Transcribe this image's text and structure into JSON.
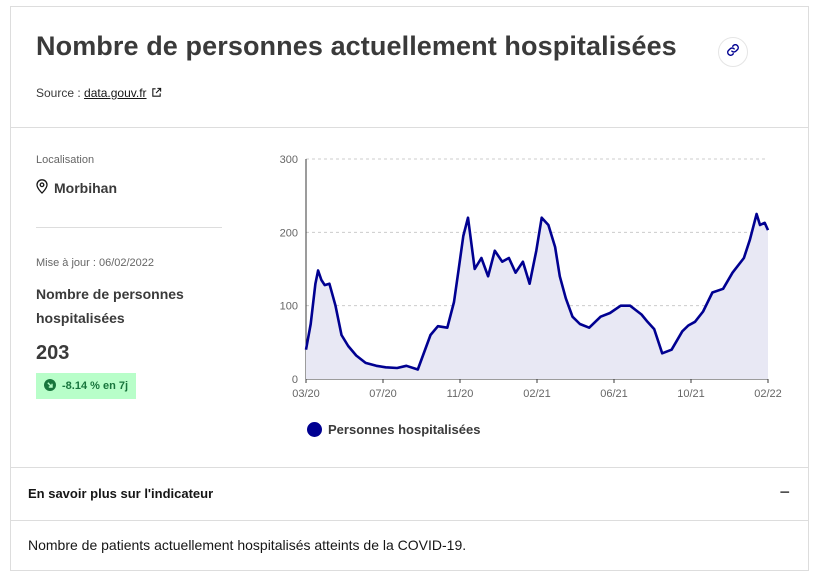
{
  "title": "Nombre de personnes actuellement hospitalisées",
  "source": {
    "label": "Source :",
    "link_text": "data.gouv.fr"
  },
  "sidebar": {
    "location_label": "Localisation",
    "location_value": "Morbihan",
    "update_label": "Mise à jour : 06/02/2022",
    "indicator_name": "Nombre de personnes hospitalisées",
    "value": "203",
    "badge_text": "-8.14 % en 7j"
  },
  "icons": {
    "link": "link-icon",
    "external": "external-link-icon",
    "location": "map-pin-icon",
    "trend": "arrow-down-right-circle-icon",
    "collapse": "minus-icon"
  },
  "colors": {
    "series": "#000091",
    "area_fill": "#e8e8f4",
    "badge_bg": "#b8fec9",
    "badge_text": "#18753c"
  },
  "chart_data": {
    "type": "area",
    "title": "",
    "xlabel": "",
    "ylabel": "",
    "ylim": [
      0,
      300
    ],
    "yticks": [
      "0",
      "100",
      "200",
      "300"
    ],
    "xticks": [
      "03/20",
      "07/20",
      "11/20",
      "02/21",
      "06/21",
      "10/21",
      "02/22"
    ],
    "grid": true,
    "legend_position": "bottom",
    "series": [
      {
        "name": "Personnes hospitalisées",
        "x": [
          "2020-03-18",
          "2020-03-25",
          "2020-04-01",
          "2020-04-05",
          "2020-04-10",
          "2020-04-15",
          "2020-04-22",
          "2020-05-01",
          "2020-05-10",
          "2020-05-20",
          "2020-06-01",
          "2020-06-15",
          "2020-07-01",
          "2020-07-15",
          "2020-08-01",
          "2020-08-15",
          "2020-09-01",
          "2020-09-20",
          "2020-10-01",
          "2020-10-15",
          "2020-10-25",
          "2020-11-01",
          "2020-11-08",
          "2020-11-15",
          "2020-11-25",
          "2020-12-05",
          "2020-12-15",
          "2020-12-25",
          "2021-01-05",
          "2021-01-15",
          "2021-01-25",
          "2021-02-05",
          "2021-02-15",
          "2021-02-25",
          "2021-03-05",
          "2021-03-15",
          "2021-03-25",
          "2021-04-01",
          "2021-04-10",
          "2021-04-20",
          "2021-05-01",
          "2021-05-15",
          "2021-06-01",
          "2021-06-15",
          "2021-07-01",
          "2021-07-15",
          "2021-08-01",
          "2021-08-10",
          "2021-08-20",
          "2021-09-01",
          "2021-09-15",
          "2021-10-01",
          "2021-10-10",
          "2021-10-20",
          "2021-11-01",
          "2021-11-15",
          "2021-12-01",
          "2021-12-15",
          "2022-01-01",
          "2022-01-10",
          "2022-01-20",
          "2022-01-25",
          "2022-02-01",
          "2022-02-06"
        ],
        "values": [
          40,
          75,
          130,
          148,
          135,
          128,
          130,
          100,
          60,
          45,
          32,
          22,
          18,
          16,
          15,
          18,
          13,
          60,
          72,
          70,
          105,
          150,
          195,
          220,
          150,
          165,
          140,
          175,
          160,
          165,
          145,
          160,
          130,
          175,
          220,
          210,
          180,
          140,
          110,
          85,
          75,
          70,
          85,
          90,
          100,
          100,
          88,
          78,
          68,
          35,
          40,
          65,
          73,
          78,
          92,
          118,
          123,
          145,
          165,
          190,
          225,
          210,
          213,
          203
        ]
      }
    ]
  },
  "accordion": {
    "title": "En savoir plus sur l'indicateur",
    "toggle": "−"
  },
  "description": "Nombre de patients actuellement hospitalisés atteints de la COVID-19."
}
